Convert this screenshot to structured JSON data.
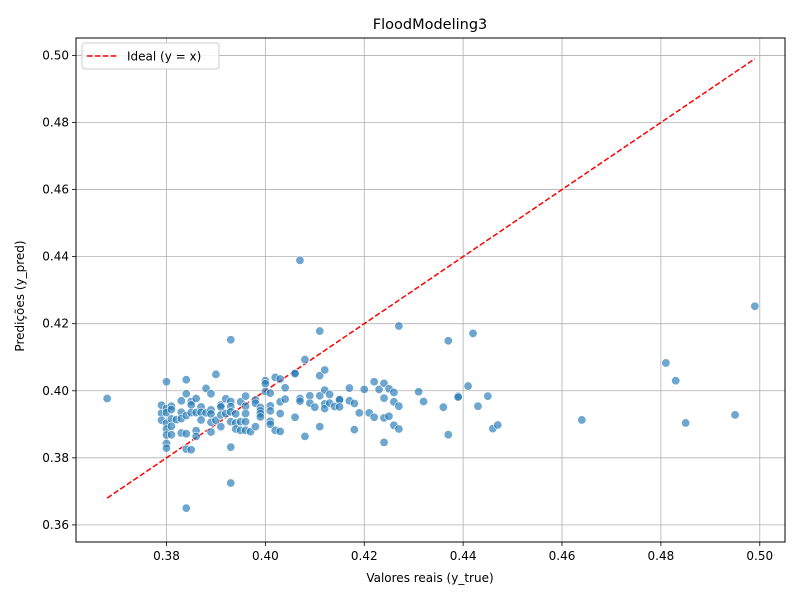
{
  "chart_data": {
    "type": "scatter",
    "title": "FloodModeling3",
    "xlabel": "Valores reais (y_true)",
    "ylabel": "Predições (y_pred)",
    "xlim": [
      0.3617,
      0.5051
    ],
    "ylim": [
      0.3549,
      0.5052
    ],
    "xticks": [
      0.38,
      0.4,
      0.42,
      0.44,
      0.46,
      0.48,
      0.5
    ],
    "xtick_labels": [
      "0.38",
      "0.40",
      "0.42",
      "0.44",
      "0.46",
      "0.48",
      "0.50"
    ],
    "yticks": [
      0.36,
      0.38,
      0.4,
      0.42,
      0.44,
      0.46,
      0.48,
      0.5
    ],
    "ytick_labels": [
      "0.36",
      "0.38",
      "0.40",
      "0.42",
      "0.44",
      "0.46",
      "0.48",
      "0.50"
    ],
    "grid": true,
    "legend": {
      "position": "top-left",
      "entries": [
        "Ideal (y = x)"
      ]
    },
    "ideal_line": {
      "name": "Ideal (y = x)",
      "color": "#ff0000",
      "x": [
        0.368,
        0.499
      ],
      "y": [
        0.368,
        0.499
      ]
    },
    "point_color": "#1f77b4",
    "points": [
      [
        0.368,
        0.3977
      ],
      [
        0.379,
        0.3957
      ],
      [
        0.379,
        0.3933
      ],
      [
        0.379,
        0.3912
      ],
      [
        0.38,
        0.4027
      ],
      [
        0.38,
        0.3947
      ],
      [
        0.38,
        0.3935
      ],
      [
        0.38,
        0.3903
      ],
      [
        0.38,
        0.3886
      ],
      [
        0.38,
        0.3868
      ],
      [
        0.38,
        0.3843
      ],
      [
        0.38,
        0.3829
      ],
      [
        0.381,
        0.3954
      ],
      [
        0.381,
        0.3944
      ],
      [
        0.381,
        0.3916
      ],
      [
        0.381,
        0.3894
      ],
      [
        0.381,
        0.3869
      ],
      [
        0.382,
        0.3914
      ],
      [
        0.383,
        0.397
      ],
      [
        0.383,
        0.3936
      ],
      [
        0.383,
        0.3917
      ],
      [
        0.383,
        0.3874
      ],
      [
        0.384,
        0.4033
      ],
      [
        0.384,
        0.3991
      ],
      [
        0.384,
        0.3926
      ],
      [
        0.384,
        0.3872
      ],
      [
        0.384,
        0.3826
      ],
      [
        0.384,
        0.365
      ],
      [
        0.385,
        0.3968
      ],
      [
        0.385,
        0.3958
      ],
      [
        0.385,
        0.3935
      ],
      [
        0.385,
        0.3824
      ],
      [
        0.386,
        0.3977
      ],
      [
        0.386,
        0.3935
      ],
      [
        0.386,
        0.3881
      ],
      [
        0.386,
        0.3864
      ],
      [
        0.387,
        0.3952
      ],
      [
        0.387,
        0.3936
      ],
      [
        0.387,
        0.3913
      ],
      [
        0.388,
        0.4007
      ],
      [
        0.388,
        0.3934
      ],
      [
        0.389,
        0.3991
      ],
      [
        0.389,
        0.3943
      ],
      [
        0.389,
        0.3931
      ],
      [
        0.389,
        0.3906
      ],
      [
        0.389,
        0.3877
      ],
      [
        0.39,
        0.4049
      ],
      [
        0.39,
        0.3912
      ],
      [
        0.391,
        0.3958
      ],
      [
        0.391,
        0.3952
      ],
      [
        0.391,
        0.3928
      ],
      [
        0.391,
        0.3893
      ],
      [
        0.392,
        0.3976
      ],
      [
        0.392,
        0.3932
      ],
      [
        0.393,
        0.4152
      ],
      [
        0.393,
        0.3968
      ],
      [
        0.393,
        0.3953
      ],
      [
        0.393,
        0.3937
      ],
      [
        0.393,
        0.3908
      ],
      [
        0.393,
        0.3832
      ],
      [
        0.393,
        0.3725
      ],
      [
        0.394,
        0.3931
      ],
      [
        0.394,
        0.3904
      ],
      [
        0.394,
        0.3886
      ],
      [
        0.395,
        0.3967
      ],
      [
        0.395,
        0.3908
      ],
      [
        0.395,
        0.3882
      ],
      [
        0.396,
        0.3984
      ],
      [
        0.396,
        0.3954
      ],
      [
        0.396,
        0.3932
      ],
      [
        0.396,
        0.3908
      ],
      [
        0.396,
        0.3882
      ],
      [
        0.397,
        0.3878
      ],
      [
        0.398,
        0.3973
      ],
      [
        0.398,
        0.3963
      ],
      [
        0.398,
        0.3893
      ],
      [
        0.399,
        0.395
      ],
      [
        0.399,
        0.394
      ],
      [
        0.399,
        0.3932
      ],
      [
        0.399,
        0.3922
      ],
      [
        0.4,
        0.403
      ],
      [
        0.4,
        0.4021
      ],
      [
        0.4,
        0.3998
      ],
      [
        0.401,
        0.3993
      ],
      [
        0.401,
        0.3955
      ],
      [
        0.401,
        0.394
      ],
      [
        0.401,
        0.3909
      ],
      [
        0.401,
        0.39
      ],
      [
        0.402,
        0.404
      ],
      [
        0.402,
        0.3882
      ],
      [
        0.403,
        0.4035
      ],
      [
        0.403,
        0.3967
      ],
      [
        0.403,
        0.3932
      ],
      [
        0.403,
        0.3879
      ],
      [
        0.404,
        0.4009
      ],
      [
        0.404,
        0.3975
      ],
      [
        0.406,
        0.4053
      ],
      [
        0.406,
        0.4051
      ],
      [
        0.406,
        0.3921
      ],
      [
        0.407,
        0.4389
      ],
      [
        0.407,
        0.3977
      ],
      [
        0.407,
        0.3969
      ],
      [
        0.408,
        0.4093
      ],
      [
        0.408,
        0.3864
      ],
      [
        0.409,
        0.3985
      ],
      [
        0.409,
        0.3963
      ],
      [
        0.41,
        0.3951
      ],
      [
        0.411,
        0.4178
      ],
      [
        0.411,
        0.4045
      ],
      [
        0.411,
        0.3985
      ],
      [
        0.411,
        0.3893
      ],
      [
        0.412,
        0.4062
      ],
      [
        0.412,
        0.4002
      ],
      [
        0.412,
        0.3961
      ],
      [
        0.412,
        0.3947
      ],
      [
        0.413,
        0.3989
      ],
      [
        0.413,
        0.3963
      ],
      [
        0.414,
        0.3953
      ],
      [
        0.415,
        0.3975
      ],
      [
        0.415,
        0.3973
      ],
      [
        0.415,
        0.3952
      ],
      [
        0.417,
        0.4008
      ],
      [
        0.417,
        0.397
      ],
      [
        0.418,
        0.3962
      ],
      [
        0.418,
        0.3884
      ],
      [
        0.419,
        0.3934
      ],
      [
        0.42,
        0.4004
      ],
      [
        0.421,
        0.3934
      ],
      [
        0.422,
        0.4027
      ],
      [
        0.422,
        0.3921
      ],
      [
        0.423,
        0.4004
      ],
      [
        0.424,
        0.4022
      ],
      [
        0.424,
        0.3978
      ],
      [
        0.424,
        0.3919
      ],
      [
        0.424,
        0.3846
      ],
      [
        0.425,
        0.4006
      ],
      [
        0.425,
        0.3924
      ],
      [
        0.426,
        0.3995
      ],
      [
        0.426,
        0.3967
      ],
      [
        0.426,
        0.3897
      ],
      [
        0.427,
        0.4193
      ],
      [
        0.427,
        0.3954
      ],
      [
        0.427,
        0.3886
      ],
      [
        0.431,
        0.3997
      ],
      [
        0.432,
        0.3968
      ],
      [
        0.436,
        0.3951
      ],
      [
        0.437,
        0.4149
      ],
      [
        0.437,
        0.3869
      ],
      [
        0.439,
        0.3984
      ],
      [
        0.439,
        0.3981
      ],
      [
        0.441,
        0.4014
      ],
      [
        0.442,
        0.4171
      ],
      [
        0.443,
        0.3954
      ],
      [
        0.445,
        0.3984
      ],
      [
        0.446,
        0.3887
      ],
      [
        0.447,
        0.3898
      ],
      [
        0.464,
        0.3913
      ],
      [
        0.481,
        0.4083
      ],
      [
        0.483,
        0.403
      ],
      [
        0.485,
        0.3904
      ],
      [
        0.495,
        0.3928
      ],
      [
        0.499,
        0.4252
      ]
    ]
  }
}
